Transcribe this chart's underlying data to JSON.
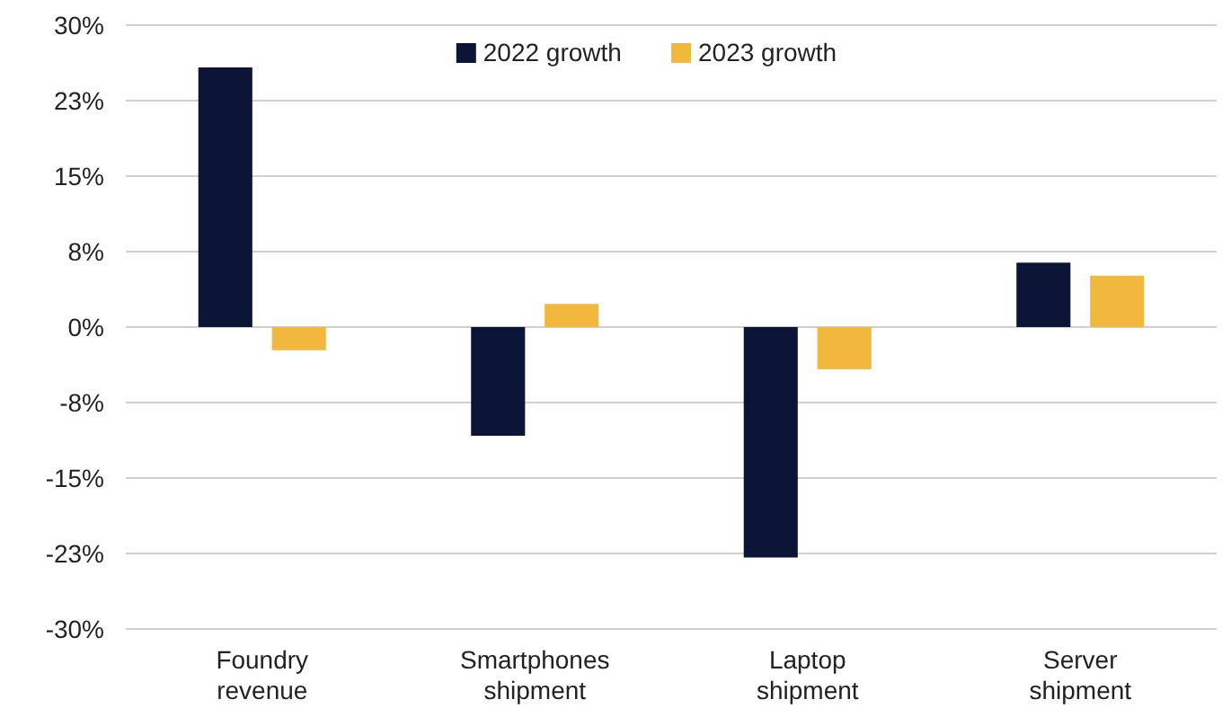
{
  "chart_data": {
    "type": "bar",
    "categories": [
      "Foundry revenue",
      "Smartphones shipment",
      "Laptop shipment",
      "Server shipment"
    ],
    "series": [
      {
        "name": "2022 growth",
        "color": "#0b1538",
        "values": [
          25.8,
          -10.8,
          -22.9,
          6.4
        ]
      },
      {
        "name": "2023 growth",
        "color": "#f2b83d",
        "values": [
          -2.3,
          2.3,
          -4.2,
          5.1
        ]
      }
    ],
    "ylim": [
      -30,
      30
    ],
    "yticks": [
      {
        "value": -30,
        "label": "-30%"
      },
      {
        "value": -22.5,
        "label": "-23%"
      },
      {
        "value": -15,
        "label": "-15%"
      },
      {
        "value": -7.5,
        "label": "-8%"
      },
      {
        "value": 0,
        "label": "0%"
      },
      {
        "value": 7.5,
        "label": "8%"
      },
      {
        "value": 15,
        "label": "15%"
      },
      {
        "value": 22.5,
        "label": "23%"
      },
      {
        "value": 30,
        "label": "30%"
      }
    ],
    "grid": "y",
    "legend": "top"
  }
}
